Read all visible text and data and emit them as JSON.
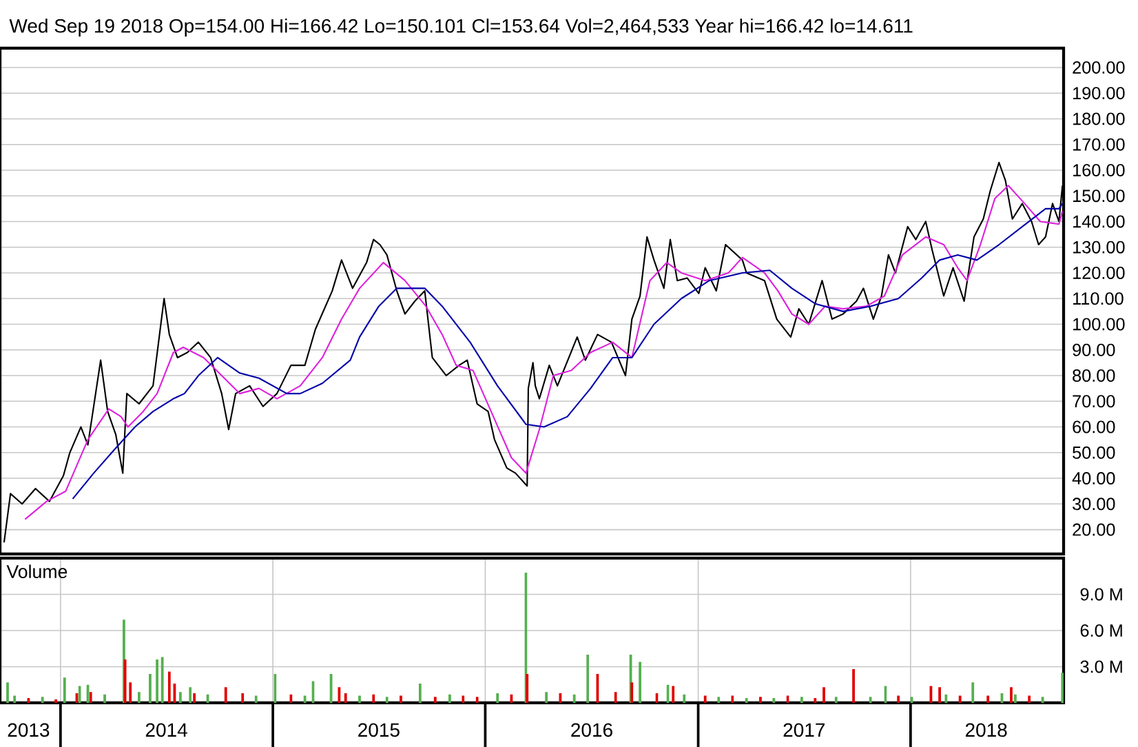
{
  "chart_data": [
    {
      "type": "line",
      "subtitle": "Wed Sep 19 2018 Op=154.00 Hi=166.42 Lo=150.101 Cl=153.64 Vol=2,464,533 Year hi=166.42 lo=14.611",
      "xlim": [
        "2013-09-19",
        "2018-09-21"
      ],
      "ylim": [
        10.5,
        207.5
      ],
      "yticks": [
        {
          "value": 20,
          "label": "20.00"
        },
        {
          "value": 30,
          "label": "30.00"
        },
        {
          "value": 40,
          "label": "40.00"
        },
        {
          "value": 50,
          "label": "50.00"
        },
        {
          "value": 60,
          "label": "60.00"
        },
        {
          "value": 70,
          "label": "70.00"
        },
        {
          "value": 80,
          "label": "80.00"
        },
        {
          "value": 90,
          "label": "90.00"
        },
        {
          "value": 100,
          "label": "100.00"
        },
        {
          "value": 110,
          "label": "110.00"
        },
        {
          "value": 120,
          "label": "120.00"
        },
        {
          "value": 130,
          "label": "130.00"
        },
        {
          "value": 140,
          "label": "140.00"
        },
        {
          "value": 150,
          "label": "150.00"
        },
        {
          "value": 160,
          "label": "160.00"
        },
        {
          "value": 170,
          "label": "170.00"
        },
        {
          "value": 180,
          "label": "180.00"
        },
        {
          "value": 190,
          "label": "190.00"
        },
        {
          "value": 200,
          "label": "200.00"
        }
      ],
      "grid": "y",
      "tick_labels": "y",
      "marker": "none",
      "series": [
        {
          "color": "#000000",
          "x": [
            "2013-09-26",
            "2013-10-07",
            "2013-10-27",
            "2013-11-19",
            "2013-12-13",
            "2014-01-06",
            "2014-01-17",
            "2014-02-05",
            "2014-02-17",
            "2014-03-11",
            "2014-03-23",
            "2014-04-06",
            "2014-04-18",
            "2014-04-25",
            "2014-05-16",
            "2014-06-09",
            "2014-06-28",
            "2014-07-07",
            "2014-07-21",
            "2014-08-07",
            "2014-08-26",
            "2014-09-16",
            "2014-10-05",
            "2014-10-17",
            "2014-10-29",
            "2014-11-22",
            "2014-12-15",
            "2015-01-08",
            "2015-02-01",
            "2015-02-25",
            "2015-03-15",
            "2015-04-13",
            "2015-04-29",
            "2015-05-18",
            "2015-06-11",
            "2015-06-23",
            "2015-07-04",
            "2015-07-16",
            "2015-08-02",
            "2015-08-16",
            "2015-09-02",
            "2015-09-19",
            "2015-10-02",
            "2015-10-26",
            "2015-11-17",
            "2015-12-01",
            "2015-12-18",
            "2016-01-06",
            "2016-01-17",
            "2016-02-07",
            "2016-02-22",
            "2016-03-13",
            "2016-03-15",
            "2016-03-23",
            "2016-03-27",
            "2016-04-03",
            "2016-04-20",
            "2016-05-04",
            "2016-06-07",
            "2016-06-21",
            "2016-07-12",
            "2016-08-05",
            "2016-08-29",
            "2016-09-09",
            "2016-09-23",
            "2016-10-05",
            "2016-10-17",
            "2016-11-03",
            "2016-11-14",
            "2016-11-26",
            "2016-12-13",
            "2017-01-02",
            "2017-01-13",
            "2017-02-01",
            "2017-02-17",
            "2017-03-18",
            "2017-03-25",
            "2017-04-25",
            "2017-05-16",
            "2017-06-09",
            "2017-06-23",
            "2017-07-10",
            "2017-08-02",
            "2017-08-19",
            "2017-09-07",
            "2017-09-30",
            "2017-10-12",
            "2017-10-29",
            "2017-11-12",
            "2017-11-24",
            "2017-12-06",
            "2017-12-27",
            "2018-01-10",
            "2018-01-27",
            "2018-02-07",
            "2018-02-27",
            "2018-03-15",
            "2018-04-03",
            "2018-04-20",
            "2018-05-06",
            "2018-05-18",
            "2018-06-02",
            "2018-06-13",
            "2018-06-25",
            "2018-07-12",
            "2018-07-28",
            "2018-08-09",
            "2018-08-21",
            "2018-09-02",
            "2018-09-13",
            "2018-09-19"
          ],
          "values": [
            15,
            34,
            30,
            36,
            31,
            41,
            50,
            60,
            53,
            86,
            66,
            57,
            42,
            73,
            69,
            76,
            110,
            96,
            87,
            89,
            93,
            87,
            73,
            59,
            73,
            76,
            68,
            73,
            84,
            84,
            98,
            113,
            125,
            114,
            124,
            133,
            131,
            127,
            113,
            104,
            109,
            113,
            87,
            80,
            84,
            86,
            69,
            66,
            55,
            44,
            42,
            37,
            75,
            85,
            76,
            71,
            84,
            76,
            95,
            86,
            96,
            93,
            80,
            102,
            111,
            134,
            125,
            114,
            133,
            117,
            118,
            112,
            122,
            113,
            131,
            125,
            120,
            117,
            102,
            95,
            106,
            100,
            117,
            102,
            104,
            109,
            114,
            102,
            111,
            127,
            120,
            138,
            133,
            140,
            129,
            111,
            122,
            109,
            134,
            141,
            152,
            163,
            156,
            141,
            147,
            140,
            131,
            134,
            147,
            140,
            154
          ]
        },
        {
          "color": "#dd22dd",
          "x": [
            "2013-11-01",
            "2013-12-08",
            "2014-01-10",
            "2014-02-17",
            "2014-03-25",
            "2014-04-15",
            "2014-04-27",
            "2014-05-23",
            "2014-06-16",
            "2014-07-14",
            "2014-07-31",
            "2014-09-04",
            "2014-10-05",
            "2014-11-05",
            "2014-12-08",
            "2015-01-08",
            "2015-02-17",
            "2015-03-27",
            "2015-04-29",
            "2015-05-30",
            "2015-07-10",
            "2015-08-16",
            "2015-09-21",
            "2015-10-19",
            "2015-11-12",
            "2015-12-11",
            "2016-01-15",
            "2016-02-15",
            "2016-03-11",
            "2016-04-03",
            "2016-04-27",
            "2016-05-28",
            "2016-06-30",
            "2016-08-07",
            "2016-09-09",
            "2016-10-10",
            "2016-11-08",
            "2016-12-03",
            "2017-01-13",
            "2017-02-22",
            "2017-03-18",
            "2017-04-25",
            "2017-05-18",
            "2017-06-11",
            "2017-07-10",
            "2017-08-07",
            "2017-09-07",
            "2017-10-17",
            "2017-11-17",
            "2017-12-18",
            "2018-01-27",
            "2018-02-27",
            "2018-03-23",
            "2018-04-08",
            "2018-05-01",
            "2018-05-26",
            "2018-06-18",
            "2018-07-16",
            "2018-08-12",
            "2018-09-13",
            "2018-09-19"
          ],
          "values": [
            24,
            31,
            35,
            55,
            67,
            64,
            60,
            66,
            73,
            89,
            91,
            87,
            80,
            73,
            75,
            71,
            76,
            87,
            102,
            114,
            124,
            117,
            107,
            96,
            84,
            82,
            64,
            48,
            42,
            59,
            80,
            82,
            89,
            93,
            87,
            117,
            124,
            120,
            117,
            120,
            126,
            120,
            113,
            104,
            100,
            107,
            106,
            107,
            111,
            127,
            134,
            131,
            122,
            117,
            131,
            149,
            154,
            147,
            140,
            139,
            144
          ]
        },
        {
          "color": "#0000aa",
          "x": [
            "2014-01-22",
            "2014-02-27",
            "2014-04-03",
            "2014-05-09",
            "2014-06-09",
            "2014-07-14",
            "2014-08-02",
            "2014-08-26",
            "2014-09-28",
            "2014-11-05",
            "2014-12-08",
            "2015-01-25",
            "2015-02-17",
            "2015-03-27",
            "2015-05-14",
            "2015-05-30",
            "2015-07-02",
            "2015-08-02",
            "2015-09-19",
            "2015-10-19",
            "2015-12-06",
            "2016-01-22",
            "2016-03-11",
            "2016-04-11",
            "2016-05-21",
            "2016-06-30",
            "2016-08-07",
            "2016-09-09",
            "2016-10-17",
            "2016-12-03",
            "2017-01-20",
            "2017-03-18",
            "2017-05-04",
            "2017-06-11",
            "2017-07-21",
            "2017-09-07",
            "2017-10-24",
            "2017-12-11",
            "2018-01-20",
            "2018-02-20",
            "2018-03-23",
            "2018-04-25",
            "2018-06-02",
            "2018-07-12",
            "2018-08-21",
            "2018-09-13",
            "2018-09-19"
          ],
          "values": [
            32,
            42,
            51,
            60,
            66,
            71,
            73,
            80,
            87,
            81,
            79,
            73,
            73,
            77,
            86,
            95,
            107,
            114,
            114,
            107,
            93,
            76,
            61,
            60,
            64,
            75,
            87,
            87,
            100,
            110,
            117,
            120,
            121,
            114,
            108,
            105,
            107,
            110,
            118,
            125,
            127,
            125,
            131,
            138,
            145,
            145,
            147
          ]
        }
      ]
    },
    {
      "type": "bar",
      "title": "Volume",
      "xlim": [
        "2013-09-19",
        "2018-09-21"
      ],
      "ylim": [
        0,
        12
      ],
      "xticks": [
        {
          "value": "2014-01-01",
          "label": null
        },
        {
          "value": "2015-01-01",
          "label": null
        },
        {
          "value": "2016-01-01",
          "label": null
        },
        {
          "value": "2017-01-01",
          "label": null
        },
        {
          "value": "2018-01-01",
          "label": null
        },
        {
          "value": "2013-11-07",
          "label": "2013"
        },
        {
          "value": "2014-07-02",
          "label": "2014"
        },
        {
          "value": "2015-07-02",
          "label": "2015"
        },
        {
          "value": "2016-07-02",
          "label": "2016"
        },
        {
          "value": "2017-07-02",
          "label": "2017"
        },
        {
          "value": "2018-05-11",
          "label": "2018"
        }
      ],
      "yticks": [
        {
          "value": 3,
          "label": "3.0 M"
        },
        {
          "value": 6,
          "label": "6.0 M"
        },
        {
          "value": 9,
          "label": "9.0 M"
        }
      ],
      "grid": true,
      "x": [
        "2013-10-02",
        "2013-10-14",
        "2013-11-07",
        "2013-12-01",
        "2013-12-24",
        "2014-01-08",
        "2014-01-29",
        "2014-02-03",
        "2014-02-17",
        "2014-02-22",
        "2014-03-18",
        "2014-04-20",
        "2014-04-22",
        "2014-05-01",
        "2014-05-16",
        "2014-06-04",
        "2014-06-16",
        "2014-06-25",
        "2014-07-07",
        "2014-07-16",
        "2014-07-26",
        "2014-08-12",
        "2014-08-19",
        "2014-09-11",
        "2014-10-12",
        "2014-11-10",
        "2014-12-03",
        "2015-01-05",
        "2015-02-01",
        "2015-02-25",
        "2015-03-11",
        "2015-04-11",
        "2015-04-25",
        "2015-05-06",
        "2015-05-30",
        "2015-06-23",
        "2015-07-16",
        "2015-08-09",
        "2015-09-11",
        "2015-10-07",
        "2015-11-01",
        "2015-11-24",
        "2015-12-18",
        "2016-01-22",
        "2016-02-15",
        "2016-03-11",
        "2016-03-13",
        "2016-04-15",
        "2016-05-09",
        "2016-06-02",
        "2016-06-25",
        "2016-07-12",
        "2016-08-12",
        "2016-09-07",
        "2016-09-09",
        "2016-09-23",
        "2016-10-22",
        "2016-11-10",
        "2016-11-19",
        "2016-12-08",
        "2017-01-13",
        "2017-02-05",
        "2017-03-01",
        "2017-03-25",
        "2017-04-18",
        "2017-05-11",
        "2017-06-04",
        "2017-06-28",
        "2017-07-21",
        "2017-08-05",
        "2017-08-26",
        "2017-09-25",
        "2017-10-24",
        "2017-11-19",
        "2017-12-11",
        "2018-01-03",
        "2018-02-05",
        "2018-02-20",
        "2018-03-03",
        "2018-03-27",
        "2018-04-18",
        "2018-05-14",
        "2018-06-07",
        "2018-06-23",
        "2018-06-30",
        "2018-07-24",
        "2018-08-16",
        "2018-09-19"
      ],
      "values": [
        1.7,
        0.6,
        0.4,
        0.5,
        0.3,
        2.1,
        0.8,
        1.4,
        1.5,
        0.9,
        0.7,
        6.9,
        3.6,
        1.7,
        0.9,
        2.4,
        3.6,
        3.8,
        2.6,
        1.6,
        0.9,
        1.3,
        0.8,
        0.7,
        1.3,
        0.8,
        0.6,
        2.4,
        0.7,
        0.6,
        1.8,
        2.4,
        1.3,
        0.8,
        0.6,
        0.7,
        0.5,
        0.6,
        1.6,
        0.5,
        0.7,
        0.6,
        0.5,
        0.8,
        0.7,
        10.8,
        2.4,
        0.9,
        0.8,
        0.7,
        4.0,
        2.4,
        0.9,
        4.0,
        1.7,
        3.4,
        0.8,
        1.5,
        1.4,
        0.7,
        0.6,
        0.5,
        0.6,
        0.4,
        0.5,
        0.4,
        0.6,
        0.5,
        0.4,
        1.3,
        0.5,
        2.8,
        0.5,
        1.4,
        0.6,
        0.5,
        1.4,
        1.3,
        0.7,
        0.6,
        1.7,
        0.6,
        0.8,
        1.3,
        0.7,
        0.6,
        0.5,
        2.5
      ],
      "colors": [
        "#55b04f",
        "#55b04f",
        "#e00000",
        "#55b04f",
        "#e00000",
        "#55b04f",
        "#e00000",
        "#55b04f",
        "#55b04f",
        "#e00000",
        "#55b04f",
        "#55b04f",
        "#e00000",
        "#e00000",
        "#55b04f",
        "#55b04f",
        "#55b04f",
        "#55b04f",
        "#e00000",
        "#e00000",
        "#55b04f",
        "#55b04f",
        "#e00000",
        "#55b04f",
        "#e00000",
        "#e00000",
        "#55b04f",
        "#55b04f",
        "#e00000",
        "#55b04f",
        "#55b04f",
        "#55b04f",
        "#e00000",
        "#e00000",
        "#55b04f",
        "#e00000",
        "#55b04f",
        "#e00000",
        "#55b04f",
        "#e00000",
        "#55b04f",
        "#e00000",
        "#e00000",
        "#55b04f",
        "#e00000",
        "#55b04f",
        "#e00000",
        "#55b04f",
        "#e00000",
        "#55b04f",
        "#55b04f",
        "#e00000",
        "#e00000",
        "#55b04f",
        "#e00000",
        "#55b04f",
        "#e00000",
        "#55b04f",
        "#e00000",
        "#55b04f",
        "#e00000",
        "#55b04f",
        "#e00000",
        "#55b04f",
        "#e00000",
        "#55b04f",
        "#e00000",
        "#55b04f",
        "#e00000",
        "#e00000",
        "#55b04f",
        "#e00000",
        "#55b04f",
        "#55b04f",
        "#e00000",
        "#55b04f",
        "#e00000",
        "#e00000",
        "#55b04f",
        "#e00000",
        "#55b04f",
        "#e00000",
        "#55b04f",
        "#e00000",
        "#55b04f",
        "#e00000",
        "#55b04f",
        "#55b04f"
      ]
    }
  ]
}
